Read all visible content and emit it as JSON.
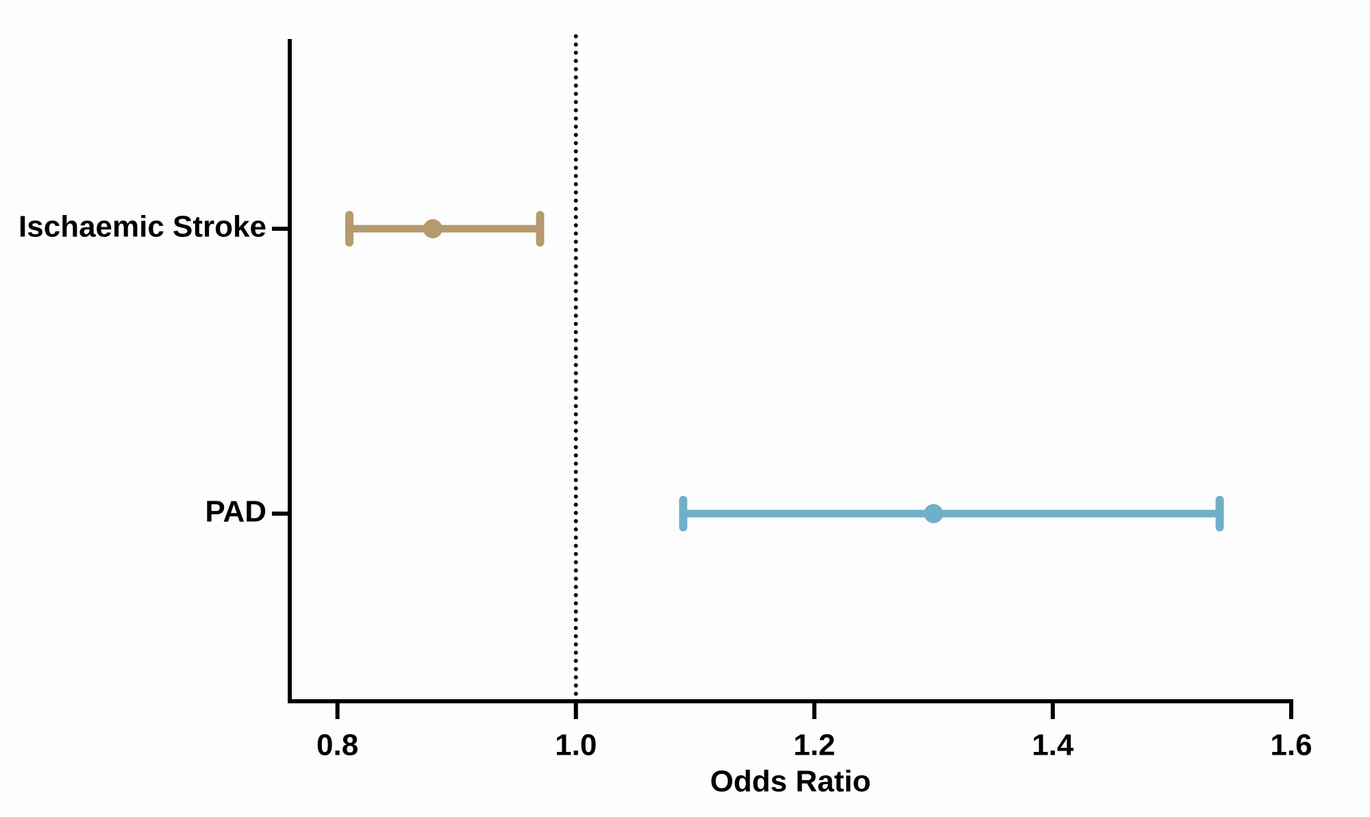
{
  "chart_data": {
    "type": "forest",
    "categories": [
      "Ischaemic Stroke",
      "PAD"
    ],
    "values": [
      0.88,
      1.3
    ],
    "lower": [
      0.81,
      1.09
    ],
    "upper": [
      0.97,
      1.54
    ],
    "colors": [
      "#b59a6e",
      "#6fb0c8"
    ],
    "xlabel": "Odds Ratio",
    "xlim": [
      0.76,
      1.6
    ],
    "xticks": [
      0.8,
      {
        "value": 1.0,
        "label": "1.0"
      },
      1.2,
      1.4,
      1.6
    ],
    "reference_line": 1.0
  }
}
